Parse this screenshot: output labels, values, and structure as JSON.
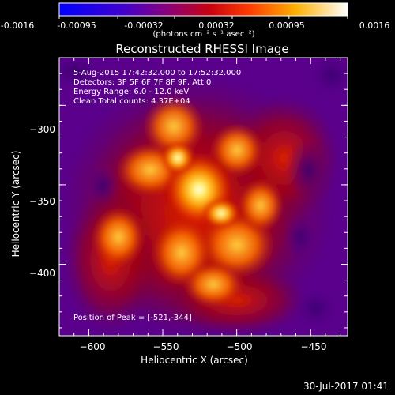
{
  "colorbar": {
    "tick_labels": [
      "-0.0016",
      "-0.00095",
      "-0.00032",
      "0.00032",
      "0.00095",
      "0.0016"
    ],
    "tick_values": [
      -0.0016,
      -0.00095,
      -0.00032,
      0.00032,
      0.00095,
      0.0016
    ],
    "units": "(photons cm⁻² s⁻¹ asec⁻²)",
    "colors": [
      "#0000ff",
      "#5a00c8",
      "#8c0070",
      "#d20000",
      "#ff6400",
      "#ffcc00",
      "#ffffff"
    ]
  },
  "plot": {
    "title": "Reconstructed RHESSI Image",
    "info_lines": [
      "5-Aug-2015 17:42:32.000 to 17:52:32.000",
      "Detectors: 3F 5F 6F 7F 8F 9F, Att 0",
      "Energy Range: 6.0 - 12.0 keV",
      "Clean     Total counts: 4.37E+04"
    ],
    "peak_label": "Position of Peak = [-521,-344]",
    "x_axis": {
      "label": "Heliocentric X (arcsec)",
      "ticks": [
        -600,
        -550,
        -500,
        -450
      ],
      "tick_labels": [
        "−600",
        "−550",
        "−500",
        "−450"
      ],
      "range": [
        -620,
        -425
      ]
    },
    "y_axis": {
      "label": "Heliocentric Y (arcsec)",
      "ticks": [
        -300,
        -350,
        -400
      ],
      "tick_labels": [
        "−300",
        "−350",
        "−400"
      ],
      "range": [
        -445,
        -270
      ]
    },
    "peak_position": [
      -521,
      -344
    ],
    "background_color": "#5a008c"
  },
  "footer": {
    "datestamp": "30-Jul-2017 01:41"
  }
}
